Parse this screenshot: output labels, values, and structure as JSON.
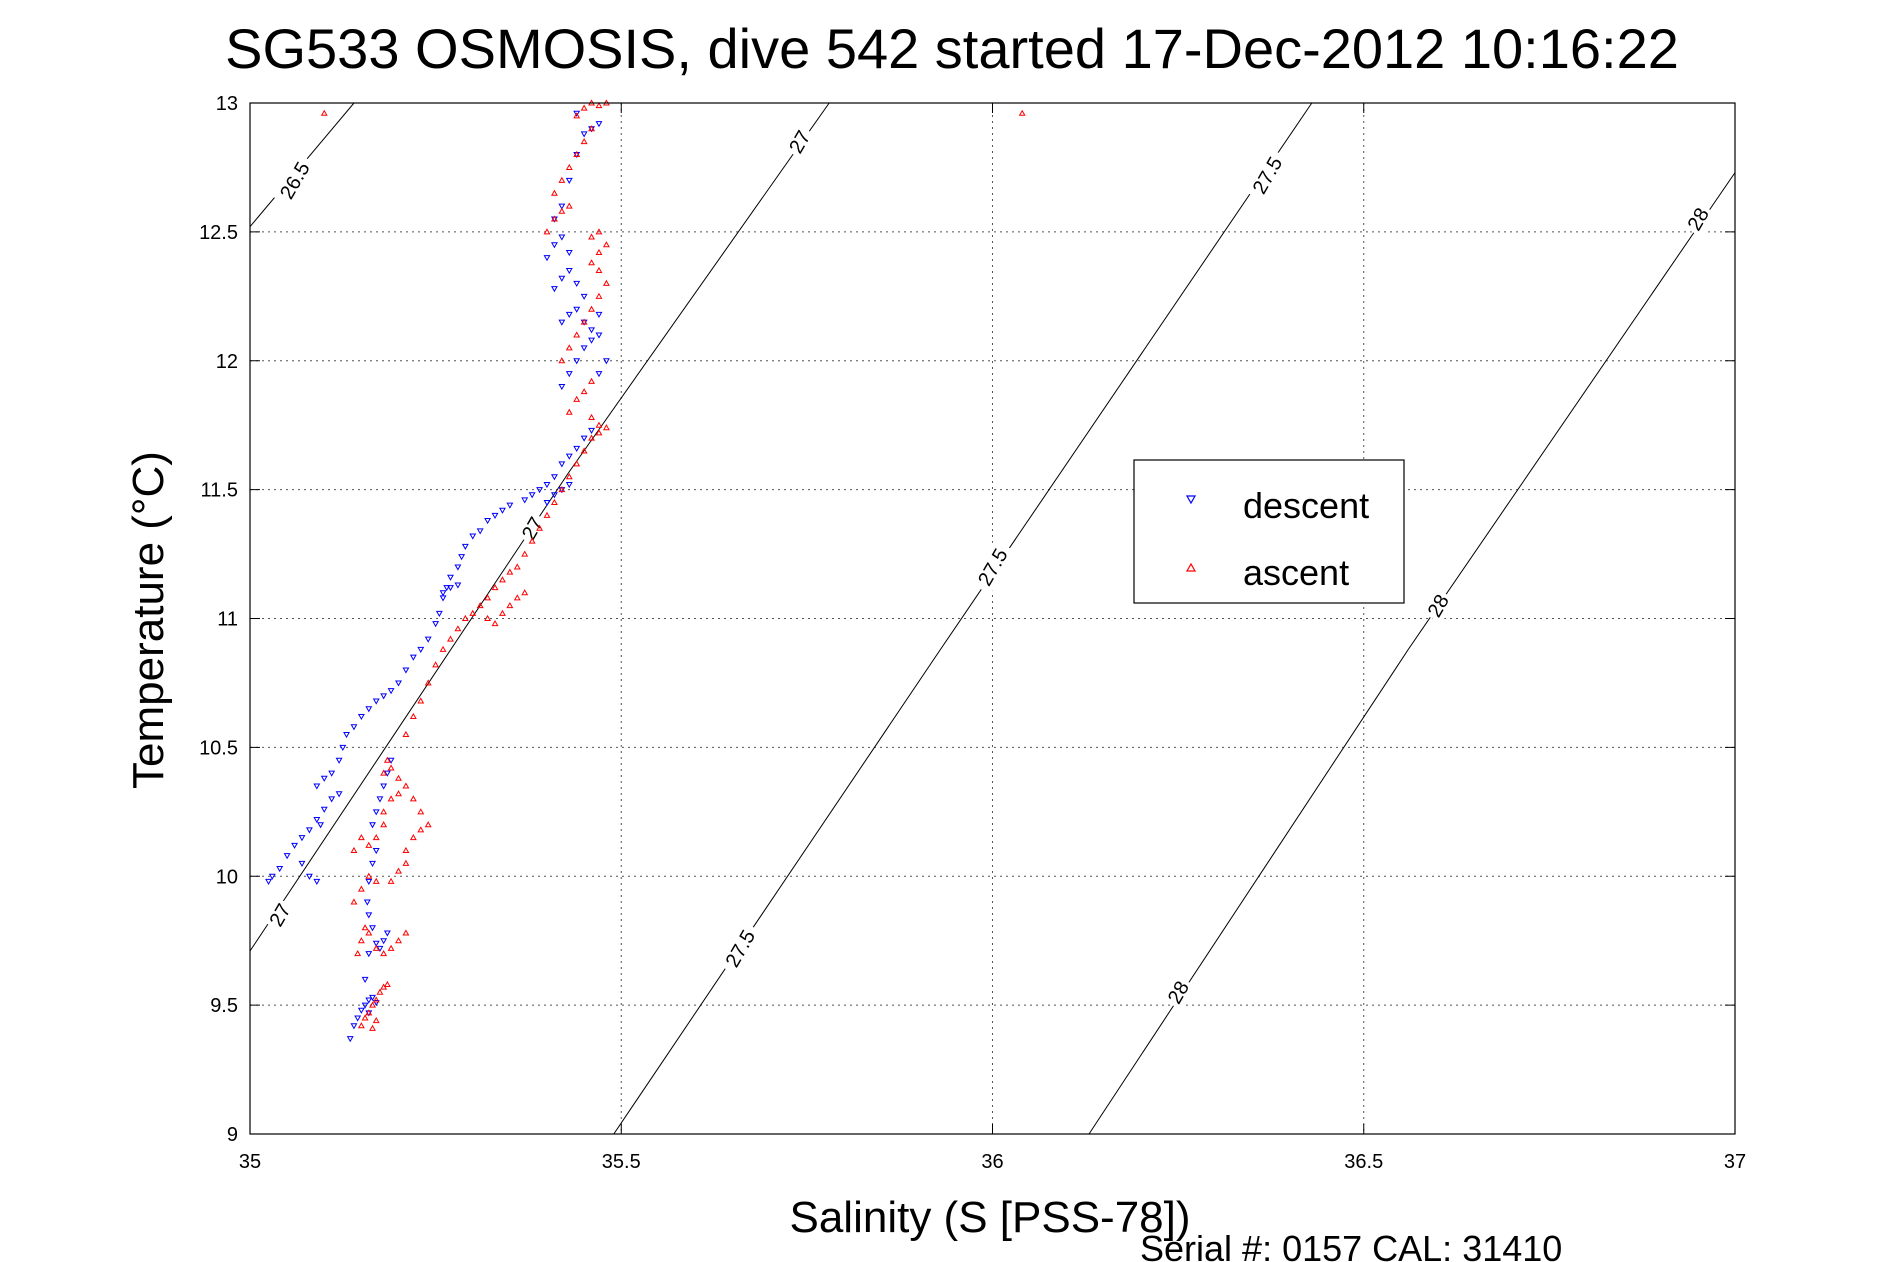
{
  "chart_data": {
    "type": "scatter",
    "title": "SG533 OSMOSIS, dive 542 started 17-Dec-2012 10:16:22",
    "xlabel": "Salinity (S [PSS-78])",
    "ylabel": "Temperature (°C)",
    "xlim": [
      35,
      37
    ],
    "ylim": [
      9,
      13
    ],
    "x_ticks": [
      "35",
      "35.5",
      "36",
      "36.5",
      "37"
    ],
    "y_ticks": [
      "9",
      "9.5",
      "10",
      "10.5",
      "11",
      "11.5",
      "12",
      "12.5",
      "13"
    ],
    "grid": true,
    "legend_position": "center-right",
    "footer": "Serial #: 0157  CAL: 31410",
    "colors": {
      "descent": "#0000ff",
      "ascent": "#ff0000"
    },
    "density_contours": [
      {
        "label": "26.5",
        "points": [
          [
            35.0,
            12.52
          ],
          [
            35.14,
            13.0
          ]
        ]
      },
      {
        "label": "27",
        "points": [
          [
            35.0,
            9.71
          ],
          [
            35.43,
            11.57
          ],
          [
            35.78,
            13.0
          ]
        ]
      },
      {
        "label": "27.5",
        "points": [
          [
            35.49,
            9.0
          ],
          [
            35.93,
            10.88
          ],
          [
            36.43,
            13.0
          ]
        ]
      },
      {
        "label": "28",
        "points": [
          [
            36.13,
            9.0
          ],
          [
            36.56,
            10.88
          ],
          [
            37.0,
            12.73
          ]
        ]
      }
    ],
    "contour_labels": [
      {
        "text": "26.5",
        "x": 35.06,
        "y": 12.7
      },
      {
        "text": "27",
        "x": 35.04,
        "y": 9.85
      },
      {
        "text": "27",
        "x": 35.38,
        "y": 11.35
      },
      {
        "text": "27",
        "x": 35.74,
        "y": 12.85
      },
      {
        "text": "27.5",
        "x": 35.66,
        "y": 9.72
      },
      {
        "text": "27.5",
        "x": 36.0,
        "y": 11.2
      },
      {
        "text": "27.5",
        "x": 36.37,
        "y": 12.72
      },
      {
        "text": "28",
        "x": 36.25,
        "y": 9.55
      },
      {
        "text": "28",
        "x": 36.6,
        "y": 11.05
      },
      {
        "text": "28",
        "x": 36.95,
        "y": 12.55
      }
    ],
    "series": [
      {
        "name": "descent",
        "marker": "triangle-down",
        "points": [
          [
            35.135,
            9.37
          ],
          [
            35.14,
            9.42
          ],
          [
            35.145,
            9.45
          ],
          [
            35.15,
            9.48
          ],
          [
            35.155,
            9.5
          ],
          [
            35.16,
            9.52
          ],
          [
            35.165,
            9.53
          ],
          [
            35.17,
            9.51
          ],
          [
            35.16,
            9.47
          ],
          [
            35.155,
            9.6
          ],
          [
            35.16,
            9.7
          ],
          [
            35.165,
            9.8
          ],
          [
            35.16,
            9.85
          ],
          [
            35.158,
            9.9
          ],
          [
            35.16,
            9.98
          ],
          [
            35.165,
            10.05
          ],
          [
            35.17,
            10.1
          ],
          [
            35.17,
            9.74
          ],
          [
            35.175,
            9.72
          ],
          [
            35.18,
            9.75
          ],
          [
            35.185,
            9.78
          ],
          [
            35.165,
            10.2
          ],
          [
            35.17,
            10.25
          ],
          [
            35.175,
            10.3
          ],
          [
            35.18,
            10.35
          ],
          [
            35.185,
            10.4
          ],
          [
            35.19,
            10.45
          ],
          [
            35.025,
            9.98
          ],
          [
            35.03,
            10.0
          ],
          [
            35.04,
            10.03
          ],
          [
            35.05,
            10.08
          ],
          [
            35.06,
            10.12
          ],
          [
            35.07,
            10.15
          ],
          [
            35.08,
            10.18
          ],
          [
            35.09,
            10.22
          ],
          [
            35.1,
            10.26
          ],
          [
            35.11,
            10.3
          ],
          [
            35.12,
            10.32
          ],
          [
            35.07,
            10.05
          ],
          [
            35.08,
            10.0
          ],
          [
            35.09,
            9.98
          ],
          [
            35.095,
            10.2
          ],
          [
            35.09,
            10.35
          ],
          [
            35.1,
            10.38
          ],
          [
            35.11,
            10.4
          ],
          [
            35.12,
            10.45
          ],
          [
            35.125,
            10.5
          ],
          [
            35.13,
            10.55
          ],
          [
            35.14,
            10.58
          ],
          [
            35.15,
            10.62
          ],
          [
            35.16,
            10.65
          ],
          [
            35.17,
            10.68
          ],
          [
            35.18,
            10.7
          ],
          [
            35.19,
            10.72
          ],
          [
            35.2,
            10.75
          ],
          [
            35.21,
            10.8
          ],
          [
            35.22,
            10.85
          ],
          [
            35.23,
            10.88
          ],
          [
            35.24,
            10.92
          ],
          [
            35.25,
            10.98
          ],
          [
            35.255,
            11.02
          ],
          [
            35.26,
            11.08
          ],
          [
            35.265,
            11.12
          ],
          [
            35.27,
            11.16
          ],
          [
            35.28,
            11.2
          ],
          [
            35.285,
            11.24
          ],
          [
            35.29,
            11.28
          ],
          [
            35.3,
            11.32
          ],
          [
            35.31,
            11.34
          ],
          [
            35.26,
            11.1
          ],
          [
            35.27,
            11.12
          ],
          [
            35.28,
            11.13
          ],
          [
            35.32,
            11.38
          ],
          [
            35.33,
            11.4
          ],
          [
            35.34,
            11.42
          ],
          [
            35.35,
            11.44
          ],
          [
            35.37,
            11.46
          ],
          [
            35.38,
            11.48
          ],
          [
            35.39,
            11.5
          ],
          [
            35.4,
            11.52
          ],
          [
            35.41,
            11.55
          ],
          [
            35.42,
            11.6
          ],
          [
            35.43,
            11.63
          ],
          [
            35.44,
            11.66
          ],
          [
            35.45,
            11.7
          ],
          [
            35.46,
            11.73
          ],
          [
            35.4,
            11.45
          ],
          [
            35.41,
            11.48
          ],
          [
            35.42,
            11.5
          ],
          [
            35.43,
            11.52
          ],
          [
            35.42,
            11.9
          ],
          [
            35.43,
            11.95
          ],
          [
            35.44,
            12.0
          ],
          [
            35.45,
            12.05
          ],
          [
            35.46,
            12.08
          ],
          [
            35.47,
            12.1
          ],
          [
            35.48,
            12.0
          ],
          [
            35.47,
            11.95
          ],
          [
            35.42,
            12.15
          ],
          [
            35.43,
            12.18
          ],
          [
            35.44,
            12.2
          ],
          [
            35.45,
            12.15
          ],
          [
            35.46,
            12.12
          ],
          [
            35.47,
            12.18
          ],
          [
            35.41,
            12.28
          ],
          [
            35.42,
            12.32
          ],
          [
            35.43,
            12.35
          ],
          [
            35.44,
            12.3
          ],
          [
            35.45,
            12.25
          ],
          [
            35.4,
            12.4
          ],
          [
            35.41,
            12.45
          ],
          [
            35.42,
            12.48
          ],
          [
            35.43,
            12.42
          ],
          [
            35.41,
            12.55
          ],
          [
            35.42,
            12.6
          ],
          [
            35.43,
            12.7
          ],
          [
            35.44,
            12.8
          ],
          [
            35.45,
            12.88
          ],
          [
            35.46,
            12.9
          ],
          [
            35.47,
            12.92
          ],
          [
            35.44,
            12.96
          ]
        ]
      },
      {
        "name": "ascent",
        "marker": "triangle-up",
        "points": [
          [
            35.15,
            9.42
          ],
          [
            35.155,
            9.45
          ],
          [
            35.16,
            9.47
          ],
          [
            35.165,
            9.5
          ],
          [
            35.17,
            9.52
          ],
          [
            35.175,
            9.55
          ],
          [
            35.18,
            9.57
          ],
          [
            35.185,
            9.58
          ],
          [
            35.165,
            9.41
          ],
          [
            35.17,
            9.44
          ],
          [
            35.145,
            9.7
          ],
          [
            35.15,
            9.75
          ],
          [
            35.155,
            9.8
          ],
          [
            35.16,
            9.78
          ],
          [
            35.17,
            9.72
          ],
          [
            35.18,
            9.7
          ],
          [
            35.19,
            9.72
          ],
          [
            35.2,
            9.75
          ],
          [
            35.21,
            9.78
          ],
          [
            35.14,
            9.9
          ],
          [
            35.15,
            9.95
          ],
          [
            35.16,
            10.0
          ],
          [
            35.17,
            9.98
          ],
          [
            35.19,
            9.98
          ],
          [
            35.2,
            10.02
          ],
          [
            35.21,
            10.05
          ],
          [
            35.21,
            10.1
          ],
          [
            35.14,
            10.1
          ],
          [
            35.15,
            10.15
          ],
          [
            35.16,
            10.12
          ],
          [
            35.17,
            10.15
          ],
          [
            35.18,
            10.2
          ],
          [
            35.18,
            10.25
          ],
          [
            35.19,
            10.3
          ],
          [
            35.2,
            10.32
          ],
          [
            35.21,
            10.35
          ],
          [
            35.22,
            10.3
          ],
          [
            35.23,
            10.25
          ],
          [
            35.24,
            10.2
          ],
          [
            35.23,
            10.18
          ],
          [
            35.22,
            10.15
          ],
          [
            35.18,
            10.4
          ],
          [
            35.185,
            10.45
          ],
          [
            35.19,
            10.42
          ],
          [
            35.2,
            10.38
          ],
          [
            35.21,
            10.55
          ],
          [
            35.22,
            10.62
          ],
          [
            35.23,
            10.68
          ],
          [
            35.24,
            10.75
          ],
          [
            35.25,
            10.82
          ],
          [
            35.26,
            10.88
          ],
          [
            35.27,
            10.92
          ],
          [
            35.28,
            10.96
          ],
          [
            35.29,
            11.0
          ],
          [
            35.3,
            11.02
          ],
          [
            35.31,
            11.05
          ],
          [
            35.32,
            11.08
          ],
          [
            35.33,
            11.12
          ],
          [
            35.34,
            11.15
          ],
          [
            35.35,
            11.18
          ],
          [
            35.32,
            11.0
          ],
          [
            35.33,
            10.98
          ],
          [
            35.34,
            11.02
          ],
          [
            35.35,
            11.05
          ],
          [
            35.36,
            11.08
          ],
          [
            35.37,
            11.1
          ],
          [
            35.36,
            11.2
          ],
          [
            35.37,
            11.25
          ],
          [
            35.38,
            11.3
          ],
          [
            35.39,
            11.35
          ],
          [
            35.4,
            11.4
          ],
          [
            35.41,
            11.45
          ],
          [
            35.42,
            11.5
          ],
          [
            35.43,
            11.55
          ],
          [
            35.44,
            11.6
          ],
          [
            35.45,
            11.65
          ],
          [
            35.46,
            11.7
          ],
          [
            35.47,
            11.72
          ],
          [
            35.48,
            11.74
          ],
          [
            35.47,
            11.75
          ],
          [
            35.46,
            11.78
          ],
          [
            35.43,
            11.8
          ],
          [
            35.44,
            11.85
          ],
          [
            35.45,
            11.88
          ],
          [
            35.46,
            11.92
          ],
          [
            35.42,
            12.0
          ],
          [
            35.43,
            12.05
          ],
          [
            35.44,
            12.1
          ],
          [
            35.45,
            12.15
          ],
          [
            35.46,
            12.2
          ],
          [
            35.47,
            12.25
          ],
          [
            35.48,
            12.3
          ],
          [
            35.47,
            12.35
          ],
          [
            35.46,
            12.38
          ],
          [
            35.47,
            12.42
          ],
          [
            35.48,
            12.45
          ],
          [
            35.47,
            12.5
          ],
          [
            35.46,
            12.48
          ],
          [
            35.4,
            12.5
          ],
          [
            35.41,
            12.55
          ],
          [
            35.42,
            12.58
          ],
          [
            35.43,
            12.6
          ],
          [
            35.41,
            12.65
          ],
          [
            35.42,
            12.7
          ],
          [
            35.43,
            12.75
          ],
          [
            35.44,
            12.8
          ],
          [
            35.45,
            12.85
          ],
          [
            35.46,
            12.9
          ],
          [
            35.44,
            12.95
          ],
          [
            35.45,
            12.98
          ],
          [
            35.46,
            13.0
          ],
          [
            35.47,
            12.99
          ],
          [
            35.48,
            13.0
          ],
          [
            35.1,
            12.96
          ],
          [
            36.04,
            12.96
          ]
        ]
      }
    ]
  }
}
